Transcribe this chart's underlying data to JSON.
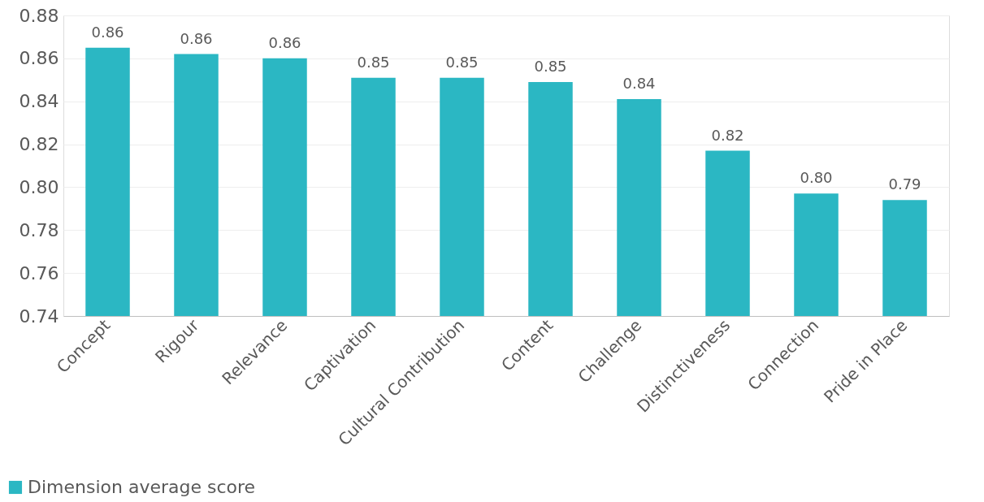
{
  "chart_data": {
    "type": "bar",
    "categories": [
      "Concept",
      "Rigour",
      "Relevance",
      "Captivation",
      "Cultural Contribution",
      "Content",
      "Challenge",
      "Distinctiveness",
      "Connection",
      "Pride in Place"
    ],
    "series": [
      {
        "name": "Dimension average score",
        "color": "#2bb7c3",
        "values": [
          0.865,
          0.862,
          0.86,
          0.851,
          0.851,
          0.849,
          0.841,
          0.817,
          0.797,
          0.794
        ],
        "value_labels": [
          "0.86",
          "0.86",
          "0.86",
          "0.85",
          "0.85",
          "0.85",
          "0.84",
          "0.82",
          "0.80",
          "0.79"
        ]
      }
    ],
    "ylim": [
      0.74,
      0.88
    ],
    "yticks": [
      0.74,
      0.76,
      0.78,
      {
        "value": 0.8,
        "label": "0.80"
      },
      0.82,
      0.84,
      0.86,
      0.88
    ],
    "grid": "y",
    "legend": "bottom left"
  }
}
